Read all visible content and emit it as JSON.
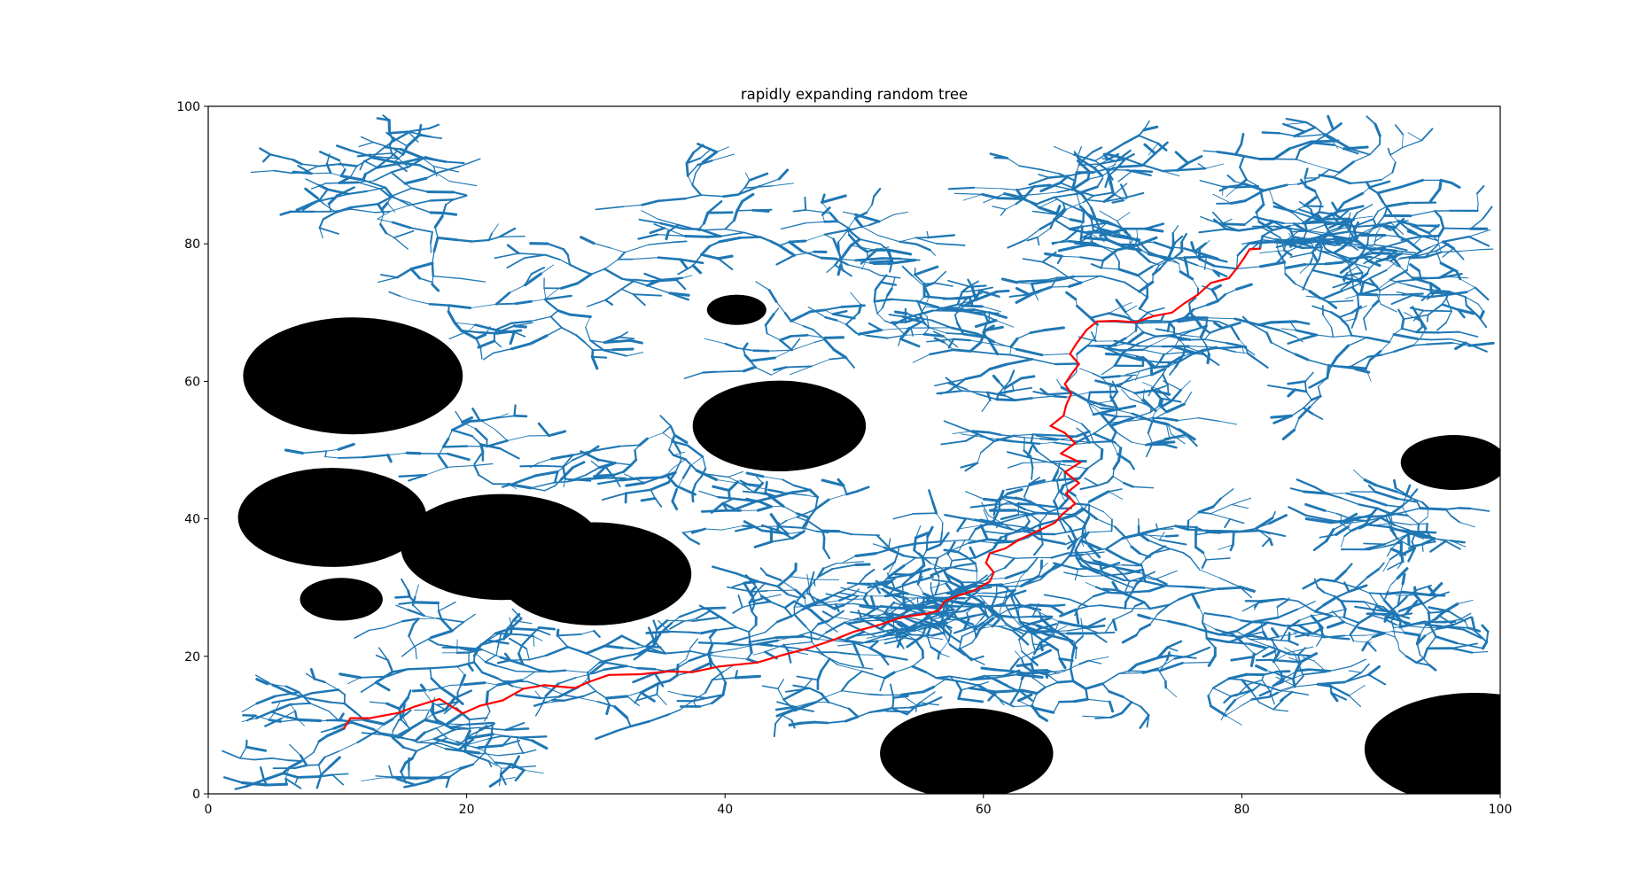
{
  "chart_data": {
    "type": "scatter",
    "title": "rapidly expanding random tree",
    "xlabel": "",
    "ylabel": "",
    "xlim": [
      0,
      100
    ],
    "ylim": [
      0,
      100
    ],
    "xticks": [
      0,
      20,
      40,
      60,
      80,
      100
    ],
    "yticks": [
      0,
      20,
      40,
      60,
      80,
      100
    ],
    "grid": false,
    "colors": {
      "tree": "#1f77b4",
      "path": "#ff0000",
      "obstacle": "#000000"
    },
    "obstacles": [
      {
        "cx": 11.2,
        "cy": 60.8,
        "rx": 8.5,
        "ry": 8.5
      },
      {
        "cx": 9.6,
        "cy": 40.2,
        "rx": 7.3,
        "ry": 7.2
      },
      {
        "cx": 22.7,
        "cy": 35.9,
        "rx": 7.8,
        "ry": 7.7
      },
      {
        "cx": 29.9,
        "cy": 32.0,
        "rx": 7.5,
        "ry": 7.5
      },
      {
        "cx": 10.3,
        "cy": 28.3,
        "rx": 3.2,
        "ry": 3.1
      },
      {
        "cx": 40.9,
        "cy": 70.4,
        "rx": 2.3,
        "ry": 2.2
      },
      {
        "cx": 44.2,
        "cy": 53.5,
        "rx": 6.7,
        "ry": 6.6
      },
      {
        "cx": 58.7,
        "cy": 5.9,
        "rx": 6.7,
        "ry": 6.6
      },
      {
        "cx": 96.4,
        "cy": 48.2,
        "rx": 4.1,
        "ry": 4.0
      },
      {
        "cx": 98.0,
        "cy": 6.5,
        "rx": 8.5,
        "ry": 8.2
      }
    ],
    "path": [
      [
        10.5,
        9.5
      ],
      [
        11.0,
        11.0
      ],
      [
        12.5,
        11.0
      ],
      [
        14.8,
        11.8
      ],
      [
        16.0,
        12.7
      ],
      [
        17.9,
        13.8
      ],
      [
        19.7,
        11.7
      ],
      [
        21.0,
        12.8
      ],
      [
        22.8,
        13.6
      ],
      [
        24.4,
        15.3
      ],
      [
        26.0,
        15.8
      ],
      [
        28.4,
        15.4
      ],
      [
        29.5,
        16.3
      ],
      [
        31.0,
        17.3
      ],
      [
        33.5,
        17.4
      ],
      [
        35.5,
        17.8
      ],
      [
        37.5,
        17.7
      ],
      [
        39.5,
        18.5
      ],
      [
        42.5,
        19.1
      ],
      [
        44.5,
        20.2
      ],
      [
        46.5,
        21.2
      ],
      [
        48.4,
        22.4
      ],
      [
        50.0,
        23.6
      ],
      [
        52.0,
        24.6
      ],
      [
        53.7,
        25.7
      ],
      [
        55.6,
        26.2
      ],
      [
        56.5,
        26.6
      ],
      [
        57.0,
        28.0
      ],
      [
        58.0,
        28.8
      ],
      [
        59.3,
        29.6
      ],
      [
        60.5,
        30.9
      ],
      [
        60.8,
        32.2
      ],
      [
        60.2,
        33.6
      ],
      [
        60.5,
        35.0
      ],
      [
        61.7,
        35.7
      ],
      [
        62.8,
        37.0
      ],
      [
        64.3,
        38.3
      ],
      [
        65.5,
        39.4
      ],
      [
        66.2,
        40.8
      ],
      [
        67.1,
        42.2
      ],
      [
        66.4,
        43.7
      ],
      [
        67.4,
        45.2
      ],
      [
        66.3,
        46.8
      ],
      [
        67.5,
        48.2
      ],
      [
        66.0,
        49.5
      ],
      [
        67.1,
        51.0
      ],
      [
        66.3,
        52.5
      ],
      [
        65.2,
        53.5
      ],
      [
        66.2,
        55.0
      ],
      [
        66.4,
        56.5
      ],
      [
        66.8,
        58.2
      ],
      [
        66.3,
        59.6
      ],
      [
        66.8,
        61.0
      ],
      [
        67.4,
        62.5
      ],
      [
        66.7,
        64.0
      ],
      [
        67.2,
        65.5
      ],
      [
        68.0,
        67.5
      ],
      [
        68.8,
        68.7
      ],
      [
        70.2,
        68.8
      ],
      [
        71.8,
        68.6
      ],
      [
        73.2,
        69.5
      ],
      [
        74.6,
        70.0
      ],
      [
        75.6,
        71.4
      ],
      [
        76.6,
        72.6
      ],
      [
        77.6,
        74.3
      ],
      [
        79.0,
        75.0
      ],
      [
        79.6,
        76.4
      ],
      [
        80.2,
        78.0
      ],
      [
        80.6,
        79.2
      ],
      [
        81.4,
        79.3
      ]
    ]
  }
}
